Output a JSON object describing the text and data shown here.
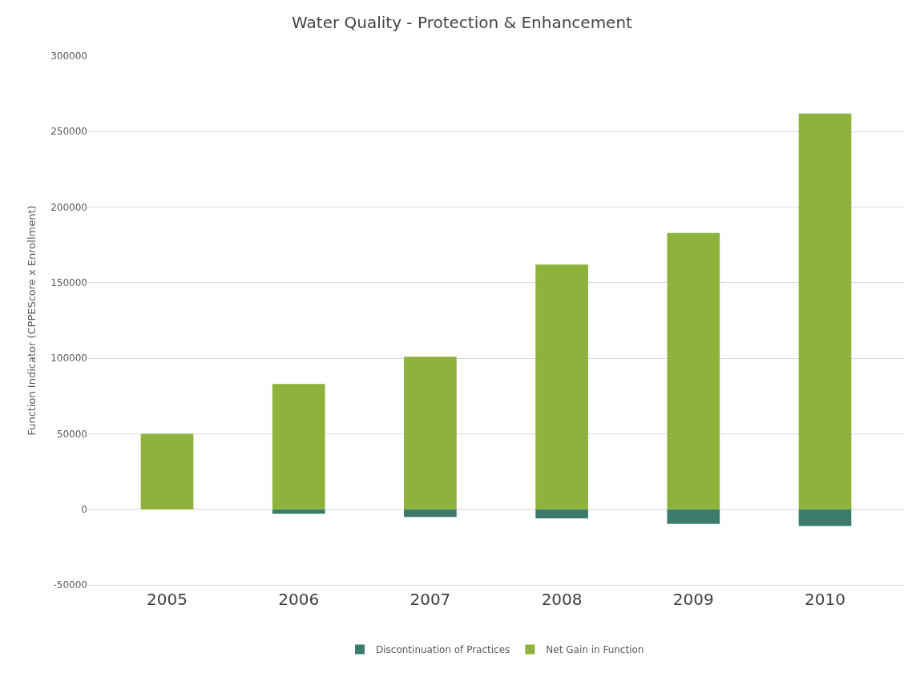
{
  "chart_data": {
    "type": "bar",
    "title": "Water Quality - Protection & Enhancement",
    "ylabel": "Function Indicator (CPPEScore x Enrollment)",
    "categories": [
      "2005",
      "2006",
      "2007",
      "2008",
      "2009",
      "2010"
    ],
    "series": [
      {
        "name": "Discontinuation of Practices",
        "color": "#3b7b6b",
        "values": [
          0,
          -3000,
          -5000,
          -6000,
          -9500,
          -11000
        ]
      },
      {
        "name": "Net Gain in Function",
        "color": "#8db33c",
        "values": [
          50000,
          83000,
          101000,
          162000,
          183000,
          262000
        ]
      }
    ],
    "stacked": true,
    "ylim": [
      -50000,
      300000
    ],
    "yticks": [
      -50000,
      0,
      50000,
      100000,
      150000,
      200000,
      250000,
      300000
    ],
    "grid": "y",
    "legend": "bottom"
  }
}
